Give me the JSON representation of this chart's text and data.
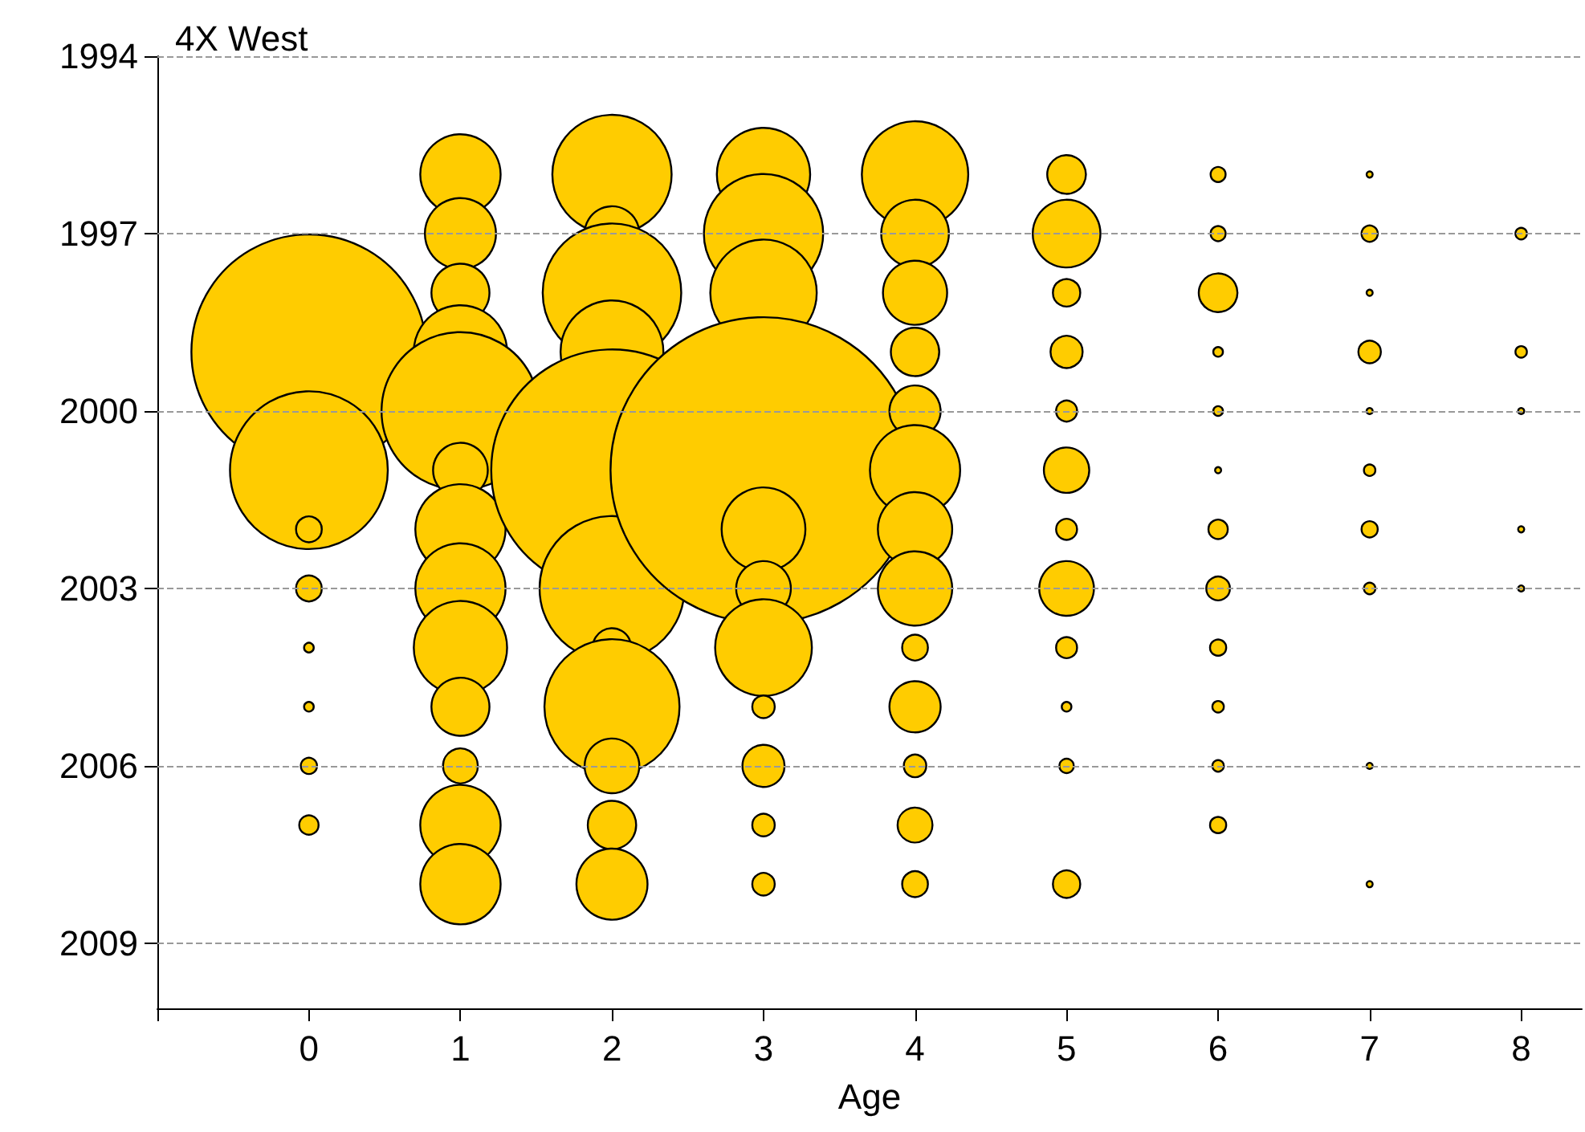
{
  "chart_data": {
    "type": "bubble",
    "title": "4X West",
    "xlabel": "Age",
    "xlim": [
      -1,
      8.4
    ],
    "xticks": [
      {
        "value": -1,
        "label": null
      },
      0,
      1,
      2,
      3,
      4,
      5,
      6,
      7,
      8
    ],
    "ylim": [
      2010.1,
      1994
    ],
    "yticks": [
      1994,
      1997,
      2000,
      2003,
      2006,
      2009
    ],
    "grid": "y",
    "marker": "circle",
    "series": [
      {
        "color": "#ffcc00",
        "x": [
          0,
          0,
          0,
          0,
          0,
          0,
          0,
          0,
          1,
          1,
          1,
          1,
          1,
          1,
          1,
          1,
          1,
          1,
          1,
          1,
          1,
          2,
          2,
          2,
          2,
          2,
          2,
          2,
          2,
          2,
          2,
          2,
          3,
          3,
          3,
          3,
          3,
          3,
          3,
          3,
          3,
          3,
          3,
          4,
          4,
          4,
          4,
          4,
          4,
          4,
          4,
          4,
          4,
          4,
          4,
          4,
          5,
          5,
          5,
          5,
          5,
          5,
          5,
          5,
          5,
          5,
          5,
          5,
          6,
          6,
          6,
          6,
          6,
          6,
          6,
          6,
          6,
          6,
          6,
          6,
          7,
          7,
          7,
          7,
          7,
          7,
          7,
          7,
          7,
          7,
          8,
          8,
          8,
          8,
          8
        ],
        "values": [
          1999,
          2001,
          2002,
          2003,
          2004,
          2005,
          2006,
          2007,
          1996,
          1997,
          1998,
          1999,
          2000,
          2001,
          2002,
          2003,
          2004,
          2005,
          2006,
          2007,
          2008,
          1996,
          1997,
          1998,
          1999,
          2001,
          2003,
          2004,
          2005,
          2006,
          2007,
          2008,
          1996,
          1997,
          1998,
          2001,
          2002,
          2003,
          2004,
          2005,
          2006,
          2007,
          2008,
          1996,
          1997,
          1998,
          1999,
          2000,
          2001,
          2002,
          2003,
          2004,
          2005,
          2006,
          2007,
          2008,
          1996,
          1997,
          1998,
          1999,
          2000,
          2001,
          2002,
          2003,
          2004,
          2005,
          2006,
          2008,
          1996,
          1997,
          1998,
          1999,
          2000,
          2001,
          2002,
          2003,
          2004,
          2005,
          2006,
          2007,
          1996,
          1997,
          1998,
          1999,
          2000,
          2001,
          2002,
          2003,
          2006,
          2008,
          1997,
          1999,
          2000,
          2002,
          2003
        ],
        "sizes": [
          0.59,
          0.266,
          0.0071,
          0.0071,
          0.001,
          0.001,
          0.0028,
          0.004,
          0.069,
          0.054,
          0.036,
          0.093,
          0.266,
          0.032,
          0.087,
          0.087,
          0.093,
          0.036,
          0.013,
          0.069,
          0.069,
          0.152,
          0.032,
          0.205,
          0.113,
          0.623,
          0.224,
          0.016,
          0.195,
          0.032,
          0.025,
          0.054,
          0.093,
          0.152,
          0.121,
          1,
          0.075,
          0.032,
          0.1,
          0.0054,
          0.019,
          0.0054,
          0.0054,
          0.121,
          0.049,
          0.044,
          0.025,
          0.028,
          0.087,
          0.059,
          0.059,
          0.0071,
          0.028,
          0.0054,
          0.013,
          0.0071,
          0.016,
          0.049,
          0.008,
          0.011,
          0.0047,
          0.022,
          0.0047,
          0.032,
          0.0047,
          0.001,
          0.0022,
          0.008,
          0.0024,
          0.0024,
          0.016,
          0.001,
          0.001,
          0.0004,
          0.004,
          0.006,
          0.0028,
          0.0014,
          0.0014,
          0.0028,
          0.0004,
          0.0028,
          0.0004,
          0.0054,
          0.0004,
          0.0014,
          0.0028,
          0.0014,
          0.0004,
          0.0004,
          0.0014,
          0.0014,
          0.0004,
          0.0004,
          0.0004
        ]
      }
    ]
  }
}
